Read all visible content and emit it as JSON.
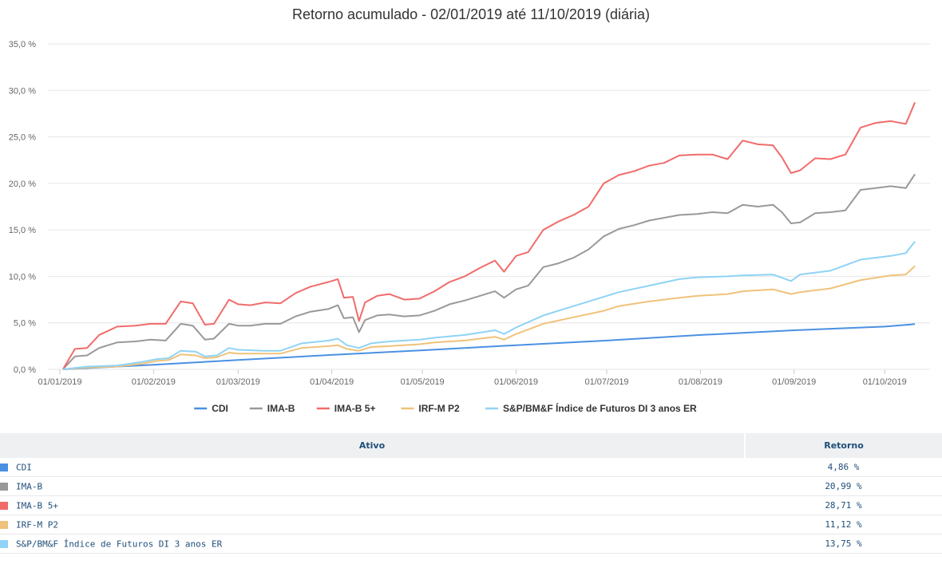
{
  "chart_data": {
    "type": "line",
    "title": "Retorno acumulado - 02/01/2019 até 11/10/2019 (diária)",
    "xlabel": "",
    "ylabel": "",
    "ylim": [
      0,
      35
    ],
    "y_ticks": [
      "0,0 %",
      "5,0 %",
      "10,0 %",
      "15,0 %",
      "20,0 %",
      "25,0 %",
      "30,0 %",
      "35,0 %"
    ],
    "x_range": [
      "2019-01-01",
      "2019-10-16"
    ],
    "x_ticks": [
      {
        "date": "2019-01-01",
        "label": "01/01/2019"
      },
      {
        "date": "2019-02-01",
        "label": "01/02/2019"
      },
      {
        "date": "2019-03-01",
        "label": "01/03/2019"
      },
      {
        "date": "2019-04-01",
        "label": "01/04/2019"
      },
      {
        "date": "2019-05-01",
        "label": "01/05/2019"
      },
      {
        "date": "2019-06-01",
        "label": "01/06/2019"
      },
      {
        "date": "2019-07-01",
        "label": "01/07/2019"
      },
      {
        "date": "2019-08-01",
        "label": "01/08/2019"
      },
      {
        "date": "2019-09-01",
        "label": "01/09/2019"
      },
      {
        "date": "2019-10-01",
        "label": "01/10/2019"
      }
    ],
    "grid": true,
    "legend_position": "bottom-center",
    "series": [
      {
        "name": "CDI",
        "color": "#4a90e2",
        "points": [
          [
            "2019-01-02",
            0
          ],
          [
            "2019-02-01",
            0.5
          ],
          [
            "2019-03-01",
            1.0
          ],
          [
            "2019-04-01",
            1.55
          ],
          [
            "2019-05-01",
            2.05
          ],
          [
            "2019-06-01",
            2.6
          ],
          [
            "2019-07-01",
            3.1
          ],
          [
            "2019-08-01",
            3.7
          ],
          [
            "2019-09-01",
            4.2
          ],
          [
            "2019-10-01",
            4.6
          ],
          [
            "2019-10-11",
            4.86
          ]
        ]
      },
      {
        "name": "IMA-B",
        "color": "#999999",
        "points": [
          [
            "2019-01-02",
            0
          ],
          [
            "2019-01-06",
            1.4
          ],
          [
            "2019-01-10",
            1.5
          ],
          [
            "2019-01-14",
            2.3
          ],
          [
            "2019-01-20",
            2.9
          ],
          [
            "2019-01-26",
            3.0
          ],
          [
            "2019-01-31",
            3.2
          ],
          [
            "2019-02-05",
            3.1
          ],
          [
            "2019-02-10",
            4.9
          ],
          [
            "2019-02-14",
            4.7
          ],
          [
            "2019-02-18",
            3.2
          ],
          [
            "2019-02-21",
            3.3
          ],
          [
            "2019-02-26",
            4.9
          ],
          [
            "2019-03-01",
            4.7
          ],
          [
            "2019-03-05",
            4.7
          ],
          [
            "2019-03-10",
            4.9
          ],
          [
            "2019-03-15",
            4.9
          ],
          [
            "2019-03-20",
            5.7
          ],
          [
            "2019-03-25",
            6.2
          ],
          [
            "2019-03-31",
            6.5
          ],
          [
            "2019-04-03",
            6.9
          ],
          [
            "2019-04-05",
            5.5
          ],
          [
            "2019-04-08",
            5.6
          ],
          [
            "2019-04-10",
            4.0
          ],
          [
            "2019-04-12",
            5.3
          ],
          [
            "2019-04-16",
            5.8
          ],
          [
            "2019-04-20",
            5.9
          ],
          [
            "2019-04-25",
            5.7
          ],
          [
            "2019-04-30",
            5.8
          ],
          [
            "2019-05-05",
            6.3
          ],
          [
            "2019-05-10",
            7.0
          ],
          [
            "2019-05-15",
            7.4
          ],
          [
            "2019-05-20",
            7.9
          ],
          [
            "2019-05-25",
            8.4
          ],
          [
            "2019-05-28",
            7.7
          ],
          [
            "2019-06-01",
            8.6
          ],
          [
            "2019-06-05",
            9.0
          ],
          [
            "2019-06-10",
            11.0
          ],
          [
            "2019-06-15",
            11.4
          ],
          [
            "2019-06-20",
            12.0
          ],
          [
            "2019-06-25",
            12.9
          ],
          [
            "2019-06-30",
            14.3
          ],
          [
            "2019-07-05",
            15.1
          ],
          [
            "2019-07-10",
            15.5
          ],
          [
            "2019-07-15",
            16.0
          ],
          [
            "2019-07-20",
            16.3
          ],
          [
            "2019-07-25",
            16.6
          ],
          [
            "2019-07-31",
            16.7
          ],
          [
            "2019-08-05",
            16.9
          ],
          [
            "2019-08-10",
            16.8
          ],
          [
            "2019-08-15",
            17.7
          ],
          [
            "2019-08-20",
            17.5
          ],
          [
            "2019-08-25",
            17.7
          ],
          [
            "2019-08-28",
            16.9
          ],
          [
            "2019-08-31",
            15.7
          ],
          [
            "2019-09-03",
            15.8
          ],
          [
            "2019-09-08",
            16.8
          ],
          [
            "2019-09-13",
            16.9
          ],
          [
            "2019-09-18",
            17.1
          ],
          [
            "2019-09-23",
            19.3
          ],
          [
            "2019-09-28",
            19.5
          ],
          [
            "2019-10-03",
            19.7
          ],
          [
            "2019-10-08",
            19.5
          ],
          [
            "2019-10-11",
            20.99
          ]
        ]
      },
      {
        "name": "IMA-B 5+",
        "color": "#f26b6b",
        "points": [
          [
            "2019-01-02",
            0
          ],
          [
            "2019-01-06",
            2.2
          ],
          [
            "2019-01-10",
            2.3
          ],
          [
            "2019-01-14",
            3.7
          ],
          [
            "2019-01-20",
            4.6
          ],
          [
            "2019-01-26",
            4.7
          ],
          [
            "2019-01-31",
            4.9
          ],
          [
            "2019-02-05",
            4.9
          ],
          [
            "2019-02-10",
            7.3
          ],
          [
            "2019-02-14",
            7.1
          ],
          [
            "2019-02-18",
            4.8
          ],
          [
            "2019-02-21",
            4.9
          ],
          [
            "2019-02-26",
            7.5
          ],
          [
            "2019-03-01",
            7.0
          ],
          [
            "2019-03-05",
            6.9
          ],
          [
            "2019-03-10",
            7.2
          ],
          [
            "2019-03-15",
            7.1
          ],
          [
            "2019-03-20",
            8.2
          ],
          [
            "2019-03-25",
            8.9
          ],
          [
            "2019-03-31",
            9.4
          ],
          [
            "2019-04-03",
            9.7
          ],
          [
            "2019-04-05",
            7.7
          ],
          [
            "2019-04-08",
            7.8
          ],
          [
            "2019-04-10",
            5.2
          ],
          [
            "2019-04-12",
            7.2
          ],
          [
            "2019-04-16",
            7.9
          ],
          [
            "2019-04-20",
            8.1
          ],
          [
            "2019-04-25",
            7.5
          ],
          [
            "2019-04-30",
            7.6
          ],
          [
            "2019-05-05",
            8.4
          ],
          [
            "2019-05-10",
            9.4
          ],
          [
            "2019-05-15",
            10.0
          ],
          [
            "2019-05-20",
            10.9
          ],
          [
            "2019-05-25",
            11.7
          ],
          [
            "2019-05-28",
            10.5
          ],
          [
            "2019-06-01",
            12.2
          ],
          [
            "2019-06-05",
            12.6
          ],
          [
            "2019-06-10",
            15.0
          ],
          [
            "2019-06-15",
            15.9
          ],
          [
            "2019-06-20",
            16.6
          ],
          [
            "2019-06-25",
            17.5
          ],
          [
            "2019-06-30",
            20.0
          ],
          [
            "2019-07-05",
            20.9
          ],
          [
            "2019-07-10",
            21.3
          ],
          [
            "2019-07-15",
            21.9
          ],
          [
            "2019-07-20",
            22.2
          ],
          [
            "2019-07-25",
            23.0
          ],
          [
            "2019-07-31",
            23.1
          ],
          [
            "2019-08-05",
            23.1
          ],
          [
            "2019-08-10",
            22.6
          ],
          [
            "2019-08-15",
            24.6
          ],
          [
            "2019-08-20",
            24.2
          ],
          [
            "2019-08-25",
            24.1
          ],
          [
            "2019-08-28",
            22.8
          ],
          [
            "2019-08-31",
            21.1
          ],
          [
            "2019-09-03",
            21.4
          ],
          [
            "2019-09-08",
            22.7
          ],
          [
            "2019-09-13",
            22.6
          ],
          [
            "2019-09-18",
            23.1
          ],
          [
            "2019-09-23",
            26.0
          ],
          [
            "2019-09-28",
            26.5
          ],
          [
            "2019-10-03",
            26.7
          ],
          [
            "2019-10-08",
            26.4
          ],
          [
            "2019-10-11",
            28.71
          ]
        ]
      },
      {
        "name": "IRF-M P2",
        "color": "#f0c27b",
        "points": [
          [
            "2019-01-02",
            0
          ],
          [
            "2019-01-10",
            0.2
          ],
          [
            "2019-01-20",
            0.3
          ],
          [
            "2019-01-28",
            0.6
          ],
          [
            "2019-02-02",
            0.9
          ],
          [
            "2019-02-06",
            1.0
          ],
          [
            "2019-02-10",
            1.6
          ],
          [
            "2019-02-15",
            1.5
          ],
          [
            "2019-02-18",
            1.2
          ],
          [
            "2019-02-22",
            1.3
          ],
          [
            "2019-02-26",
            1.8
          ],
          [
            "2019-03-01",
            1.7
          ],
          [
            "2019-03-10",
            1.7
          ],
          [
            "2019-03-15",
            1.7
          ],
          [
            "2019-03-22",
            2.3
          ],
          [
            "2019-03-31",
            2.5
          ],
          [
            "2019-04-03",
            2.6
          ],
          [
            "2019-04-06",
            2.2
          ],
          [
            "2019-04-10",
            2.0
          ],
          [
            "2019-04-14",
            2.4
          ],
          [
            "2019-04-20",
            2.5
          ],
          [
            "2019-04-30",
            2.7
          ],
          [
            "2019-05-05",
            2.9
          ],
          [
            "2019-05-15",
            3.1
          ],
          [
            "2019-05-25",
            3.5
          ],
          [
            "2019-05-28",
            3.2
          ],
          [
            "2019-06-01",
            3.8
          ],
          [
            "2019-06-10",
            4.9
          ],
          [
            "2019-06-20",
            5.6
          ],
          [
            "2019-06-30",
            6.3
          ],
          [
            "2019-07-05",
            6.8
          ],
          [
            "2019-07-15",
            7.3
          ],
          [
            "2019-07-25",
            7.7
          ],
          [
            "2019-07-31",
            7.9
          ],
          [
            "2019-08-10",
            8.1
          ],
          [
            "2019-08-15",
            8.4
          ],
          [
            "2019-08-25",
            8.6
          ],
          [
            "2019-08-31",
            8.1
          ],
          [
            "2019-09-03",
            8.3
          ],
          [
            "2019-09-13",
            8.7
          ],
          [
            "2019-09-23",
            9.6
          ],
          [
            "2019-10-03",
            10.1
          ],
          [
            "2019-10-08",
            10.2
          ],
          [
            "2019-10-11",
            11.12
          ]
        ]
      },
      {
        "name": "S&P/BM&F Índice de Futuros DI 3 anos ER",
        "color": "#8fd3f5",
        "points": [
          [
            "2019-01-02",
            0
          ],
          [
            "2019-01-10",
            0.3
          ],
          [
            "2019-01-20",
            0.4
          ],
          [
            "2019-01-28",
            0.8
          ],
          [
            "2019-02-02",
            1.1
          ],
          [
            "2019-02-06",
            1.2
          ],
          [
            "2019-02-10",
            2.0
          ],
          [
            "2019-02-15",
            1.9
          ],
          [
            "2019-02-18",
            1.4
          ],
          [
            "2019-02-22",
            1.5
          ],
          [
            "2019-02-26",
            2.3
          ],
          [
            "2019-03-01",
            2.1
          ],
          [
            "2019-03-10",
            2.0
          ],
          [
            "2019-03-15",
            2.0
          ],
          [
            "2019-03-22",
            2.8
          ],
          [
            "2019-03-31",
            3.1
          ],
          [
            "2019-04-03",
            3.3
          ],
          [
            "2019-04-06",
            2.6
          ],
          [
            "2019-04-10",
            2.3
          ],
          [
            "2019-04-14",
            2.8
          ],
          [
            "2019-04-20",
            3.0
          ],
          [
            "2019-04-30",
            3.2
          ],
          [
            "2019-05-05",
            3.4
          ],
          [
            "2019-05-15",
            3.7
          ],
          [
            "2019-05-25",
            4.2
          ],
          [
            "2019-05-28",
            3.8
          ],
          [
            "2019-06-01",
            4.5
          ],
          [
            "2019-06-10",
            5.8
          ],
          [
            "2019-06-20",
            6.8
          ],
          [
            "2019-06-30",
            7.8
          ],
          [
            "2019-07-05",
            8.3
          ],
          [
            "2019-07-15",
            9.0
          ],
          [
            "2019-07-25",
            9.7
          ],
          [
            "2019-07-31",
            9.9
          ],
          [
            "2019-08-10",
            10.0
          ],
          [
            "2019-08-15",
            10.1
          ],
          [
            "2019-08-25",
            10.2
          ],
          [
            "2019-08-31",
            9.5
          ],
          [
            "2019-09-03",
            10.2
          ],
          [
            "2019-09-13",
            10.6
          ],
          [
            "2019-09-23",
            11.8
          ],
          [
            "2019-10-03",
            12.2
          ],
          [
            "2019-10-08",
            12.5
          ],
          [
            "2019-10-11",
            13.75
          ]
        ]
      }
    ]
  },
  "table": {
    "headers": {
      "asset": "Ativo",
      "return": "Retorno"
    },
    "rows": [
      {
        "name": "CDI",
        "color": "#4a90e2",
        "return": "4,86 %"
      },
      {
        "name": "IMA-B",
        "color": "#999999",
        "return": "20,99 %"
      },
      {
        "name": "IMA-B 5+",
        "color": "#f26b6b",
        "return": "28,71 %"
      },
      {
        "name": "IRF-M P2",
        "color": "#f0c27b",
        "return": "11,12 %"
      },
      {
        "name": "S&P/BM&F Índice de Futuros DI 3 anos ER",
        "color": "#8fd3f5",
        "return": "13,75 %"
      }
    ]
  }
}
